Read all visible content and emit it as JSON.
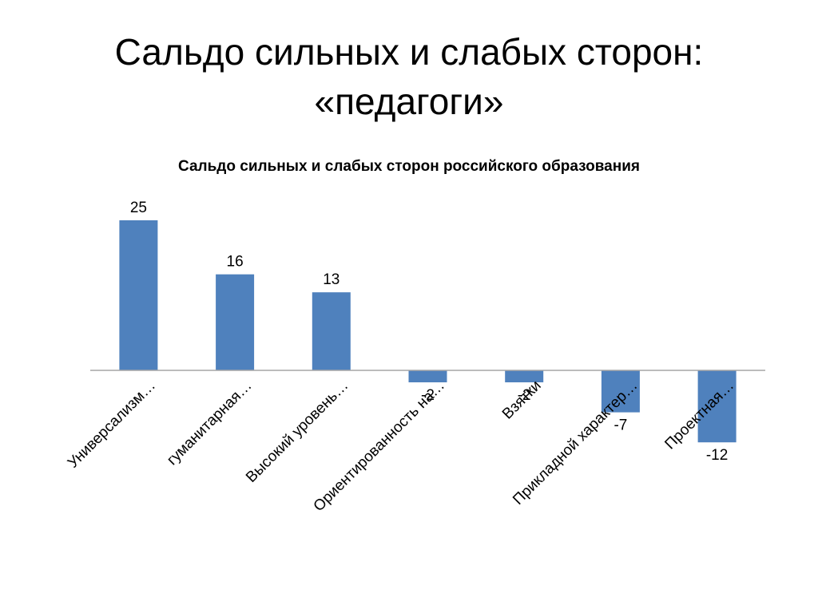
{
  "slide": {
    "title_line1": "Сальдо сильных и слабых сторон:",
    "title_line2": "«педагоги»"
  },
  "chart_data": {
    "type": "bar",
    "title": "Сальдо сильных и слабых сторон российского образования",
    "categories": [
      "Универсализм…",
      "гуманитарная…",
      "Высокий уровень…",
      "Ориентированность на…",
      "Взятки",
      "Прикладной характер…",
      "Проектная…"
    ],
    "values": [
      25,
      16,
      13,
      -2,
      -2,
      -7,
      -12
    ],
    "ylim": [
      -12,
      25
    ],
    "grid": false,
    "legend": "none",
    "bar_color": "#4f81bd",
    "axis_color": "#a6a6a6"
  }
}
